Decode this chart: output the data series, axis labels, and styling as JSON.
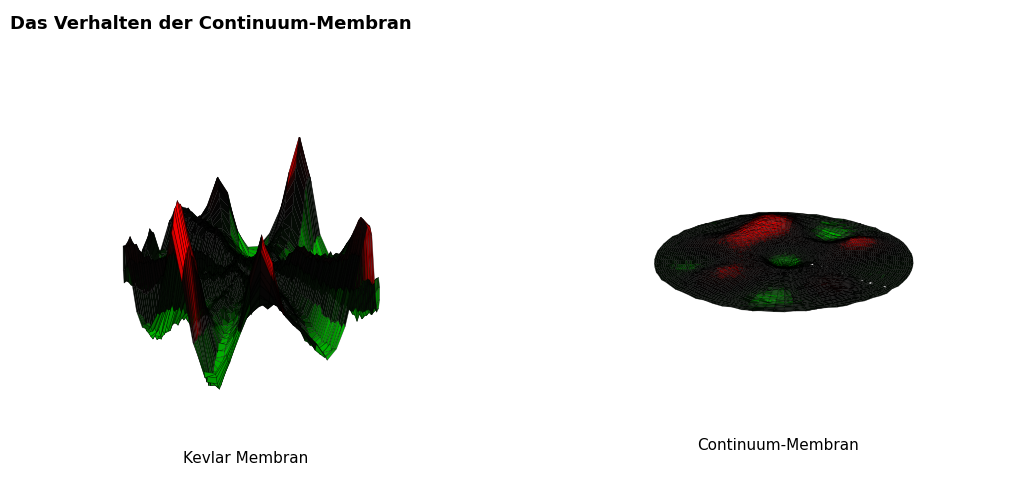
{
  "title": "Das Verhalten der Continuum-Membran",
  "title_fontsize": 13,
  "title_fontweight": "bold",
  "label1": "Kevlar Membran",
  "label2": "Continuum-Membran",
  "label_fontsize": 11,
  "background_color": "#ffffff",
  "seed": 42,
  "cmap_stops": [
    [
      0.0,
      [
        0.0,
        0.55,
        0.0
      ]
    ],
    [
      0.18,
      [
        0.0,
        0.7,
        0.0
      ]
    ],
    [
      0.32,
      [
        0.02,
        0.06,
        0.02
      ]
    ],
    [
      0.5,
      [
        0.02,
        0.02,
        0.02
      ]
    ],
    [
      0.68,
      [
        0.06,
        0.02,
        0.02
      ]
    ],
    [
      0.82,
      [
        0.7,
        0.0,
        0.0
      ]
    ],
    [
      1.0,
      [
        1.0,
        0.0,
        0.0
      ]
    ]
  ]
}
